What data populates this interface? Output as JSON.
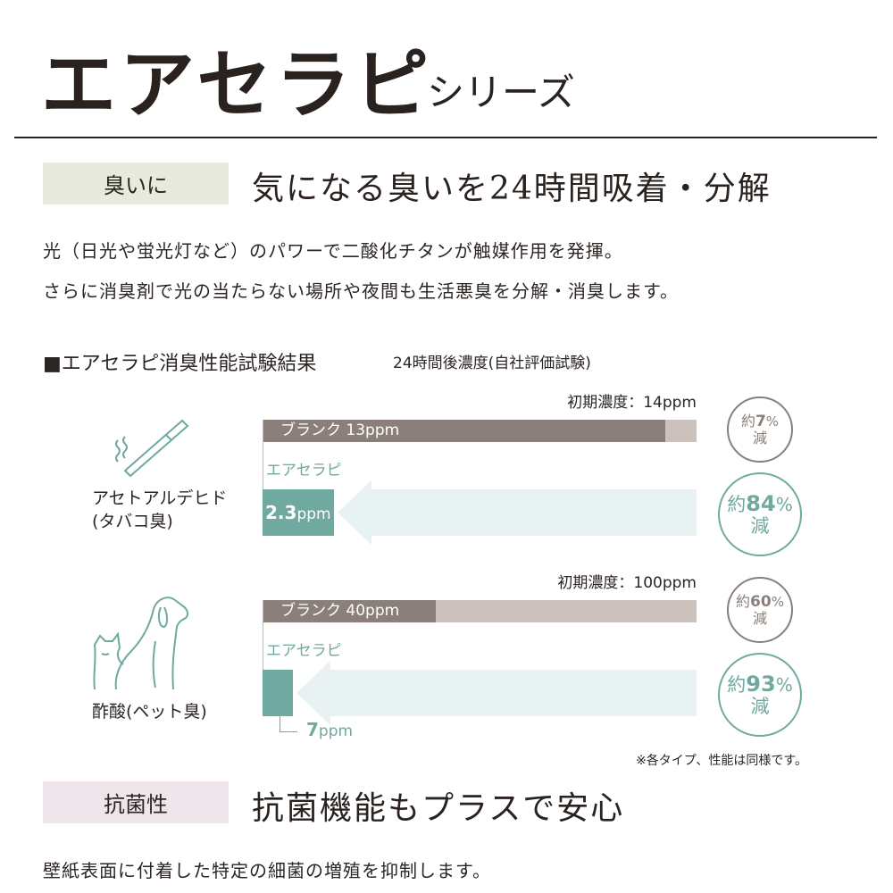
{
  "header": {
    "title": "エアセラピ",
    "subtitle": "シリーズ"
  },
  "section1": {
    "tag": "臭いに",
    "headline": "気になる臭いを24時間吸着・分解",
    "body": [
      "光（日光や蛍光灯など）のパワーで二酸化チタンが触媒作用を発揮。",
      "さらに消臭剤で光の当たらない場所や夜間も生活悪臭を分解・消臭します。"
    ]
  },
  "chart_heading": {
    "title": "■エアセラピ消臭性能試験結果",
    "note": "24時間後濃度(自社評価試験)"
  },
  "colors": {
    "blank": "#8a7f7a",
    "initial": "#cbc2be",
    "product": "#6fa9a0",
    "arrow": "#e9f2f3",
    "tag1": "#e7eadc",
    "tag2": "#efe6ec"
  },
  "chart_data": {
    "type": "bar",
    "unit": "ppm",
    "groups": [
      {
        "name": "アセトアルデヒド",
        "sub": "(タバコ臭)",
        "icon": "cigarette-icon",
        "initial": 14,
        "initial_label": "初期濃度：14ppm",
        "blank": 13,
        "blank_label": "ブランク 13ppm",
        "product_name": "エアセラピ",
        "product": 2.3,
        "product_value": "2.3",
        "product_unit": "ppm",
        "blank_reduction": {
          "pre": "約",
          "value": "7",
          "pct": "%",
          "post": "減"
        },
        "product_reduction": {
          "pre": "約",
          "value": "84",
          "pct": "%",
          "post": "減"
        }
      },
      {
        "name": "酢酸",
        "sub": "(ペット臭)",
        "icon": "dog-cat-icon",
        "initial": 100,
        "initial_label": "初期濃度：100ppm",
        "blank": 40,
        "blank_label": "ブランク 40ppm",
        "product_name": "エアセラピ",
        "product": 7,
        "product_value": "7",
        "product_unit": "ppm",
        "blank_reduction": {
          "pre": "約",
          "value": "60",
          "pct": "%",
          "post": "減"
        },
        "product_reduction": {
          "pre": "約",
          "value": "93",
          "pct": "%",
          "post": "減"
        }
      }
    ],
    "footnote": "※各タイプ、性能は同様です。"
  },
  "section2": {
    "tag": "抗菌性",
    "headline": "抗菌機能もプラスで安心",
    "body": "壁紙表面に付着した特定の細菌の増殖を抑制します。"
  }
}
